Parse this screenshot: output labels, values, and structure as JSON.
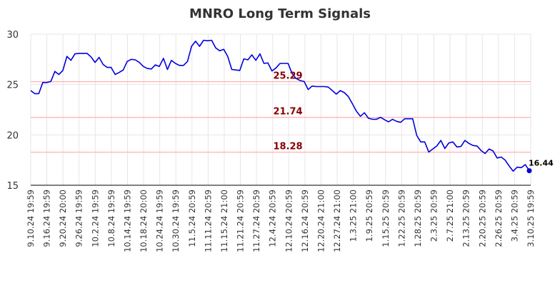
{
  "chart_data": {
    "type": "line",
    "title": "MNRO Long Term Signals",
    "ylim": [
      15,
      30
    ],
    "yticks": [
      15,
      20,
      25,
      30
    ],
    "grid": true,
    "x_tick_labels": [
      "9.10.24 19:59",
      "9.16.24 19:59",
      "9.20.24 20:00",
      "9.26.24 19:59",
      "10.2.24 19:59",
      "10.8.24 19:59",
      "10.14.24 19:59",
      "10.18.24 20:00",
      "10.24.24 19:59",
      "10.30.24 19:59",
      "11.5.24 20:59",
      "11.11.24 20:59",
      "11.15.24 21:00",
      "11.21.24 20:59",
      "11.27.24 20:59",
      "12.4.24 20:59",
      "12.10.24 20:59",
      "12.16.24 20:59",
      "12.20.24 21:00",
      "12.27.24 21:00",
      "1.3.25 21:00",
      "1.9.25 20:59",
      "1.15.25 20:59",
      "1.22.25 20:59",
      "1.28.25 20:59",
      "2.3.25 20:59",
      "2.7.25 21:00",
      "2.13.25 20:59",
      "2.20.25 20:59",
      "2.26.25 20:59",
      "3.4.25 20:59",
      "3.10.25 19:59"
    ],
    "series": [
      {
        "color": "#0000dd",
        "values": [
          24.4,
          24.1,
          24.1,
          25.2,
          25.2,
          25.3,
          26.3,
          26.0,
          26.4,
          27.8,
          27.4,
          28.05,
          28.1,
          28.1,
          28.1,
          27.75,
          27.2,
          27.7,
          27.0,
          26.7,
          26.7,
          26.0,
          26.2,
          26.45,
          27.3,
          27.5,
          27.45,
          27.2,
          26.8,
          26.6,
          26.55,
          26.95,
          26.8,
          27.6,
          26.5,
          27.4,
          27.1,
          26.9,
          26.9,
          27.3,
          28.8,
          29.3,
          28.8,
          29.4,
          29.35,
          29.4,
          28.65,
          28.35,
          28.5,
          27.8,
          26.5,
          26.45,
          26.4,
          27.55,
          27.45,
          27.95,
          27.4,
          28.05,
          27.1,
          27.15,
          26.35,
          26.65,
          27.1,
          27.1,
          27.1,
          26.1,
          25.6,
          25.4,
          25.3,
          24.5,
          24.85,
          24.8,
          24.8,
          24.8,
          24.75,
          24.4,
          24.05,
          24.4,
          24.2,
          23.8,
          23.1,
          22.35,
          21.85,
          22.2,
          21.65,
          21.55,
          21.55,
          21.75,
          21.5,
          21.3,
          21.55,
          21.35,
          21.25,
          21.6,
          21.6,
          21.6,
          19.95,
          19.3,
          19.3,
          18.3,
          18.6,
          18.9,
          19.45,
          18.65,
          19.2,
          19.3,
          18.8,
          18.85,
          19.45,
          19.15,
          18.95,
          18.9,
          18.45,
          18.15,
          18.6,
          18.4,
          17.7,
          17.8,
          17.5,
          16.9,
          16.4,
          16.8,
          16.75,
          17.05,
          16.44
        ]
      }
    ],
    "horizontal_lines": [
      {
        "value": 25.29,
        "label": "25.29",
        "line_color": "#ffbbbb",
        "label_color": "#880000"
      },
      {
        "value": 21.74,
        "label": "21.74",
        "line_color": "#ffbbbb",
        "label_color": "#880000"
      },
      {
        "value": 18.28,
        "label": "18.28",
        "line_color": "#ffbbbb",
        "label_color": "#880000"
      }
    ],
    "last_point": {
      "value": 16.44,
      "label": "16.44"
    }
  }
}
